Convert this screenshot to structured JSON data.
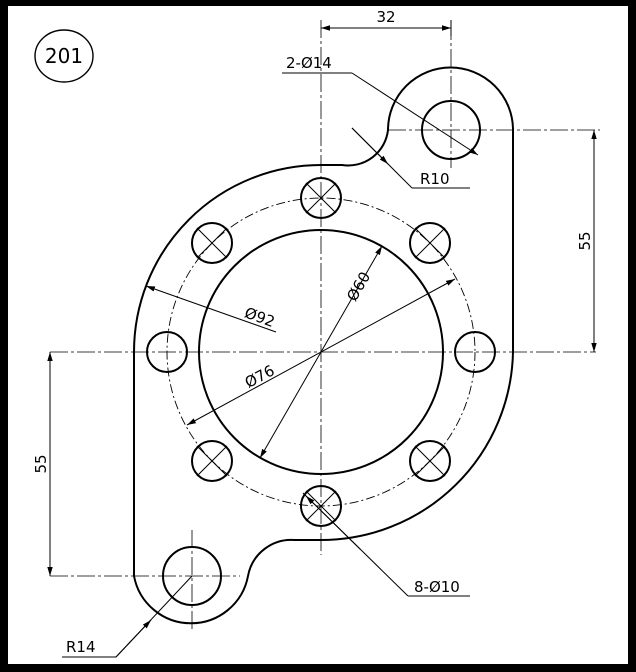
{
  "drawing": {
    "number": "201",
    "dimensions": {
      "top_width": "32",
      "hole_small": "2-Ø14",
      "fillet_r10": "R10",
      "right_height": "55",
      "dia_60": "Ø60",
      "dia_92": "Ø92",
      "dia_76": "Ø76",
      "left_height": "55",
      "holes_8": "8-Ø10",
      "radius_r14": "R14"
    }
  }
}
